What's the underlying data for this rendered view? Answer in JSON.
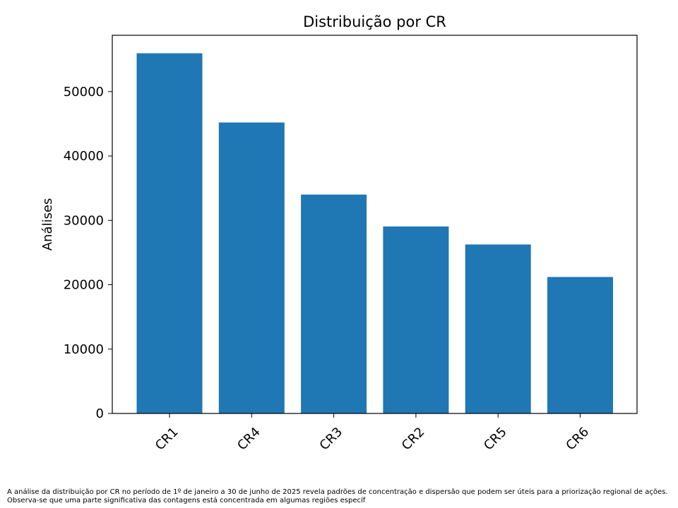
{
  "chart_data": {
    "type": "bar",
    "title": "Distribuição por CR",
    "xlabel": "",
    "ylabel": "Análises",
    "categories": [
      "CR1",
      "CR4",
      "CR3",
      "CR2",
      "CR5",
      "CR6"
    ],
    "values": [
      55950,
      45200,
      34000,
      29050,
      26250,
      21200
    ],
    "ylim": [
      0,
      58750
    ],
    "yticks": [
      0,
      10000,
      20000,
      30000,
      40000,
      50000
    ],
    "ytick_labels": [
      "0",
      "10000",
      "20000",
      "30000",
      "40000",
      "50000"
    ],
    "grid": false,
    "legend": "none",
    "bar_color": "#1f77b4"
  },
  "caption": "A análise da distribuição por CR no período de 1º de janeiro a 30 de junho de 2025 revela padrões de concentração e dispersão que podem ser úteis para a priorização regional de ações. Observa-se que uma parte significativa das contagens está concentrada em algumas regiões específ"
}
